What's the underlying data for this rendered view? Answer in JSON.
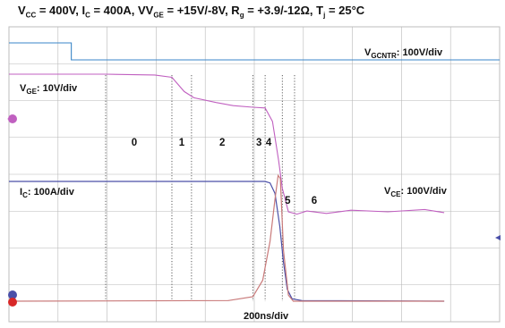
{
  "title": {
    "vcc": "CC",
    "vcc_val": " = 400V,  I",
    "ic": "C",
    "ic_val": " = 400A,  V",
    "vge": "GE",
    "vge_val": " = ",
    "vge_range": "+15V/-8V",
    "rg": "g",
    "rg_val": " = ",
    "rg_range": "+3.9/-12Ω",
    "tj": "j",
    "tj_val": " = 25°C",
    "prefix_v": "V",
    "prefix_r": ",  R",
    "prefix_t": ",  T"
  },
  "labels": {
    "vgcntr_main": "V",
    "vgcntr_sub": "GCNTR",
    "vgcntr_scale": ": 100V/div",
    "vge_main": "V",
    "vge_sub": "GE",
    "vge_scale": ": 10V/div",
    "ic_main": "I",
    "ic_sub": "C",
    "ic_scale": ": 100A/div",
    "vce_main": "V",
    "vce_sub": "CE",
    "vce_scale": ": 100V/div",
    "timebase": "200ns/div"
  },
  "colors": {
    "vgcntr": "#3a86c8",
    "vge": "#c060c0",
    "ic": "#4a4fa8",
    "vce": "#c97a7a",
    "grid": "#b8b8b8",
    "frame": "#bdbdbd"
  },
  "chart_data": {
    "type": "line",
    "time_unit": "ns",
    "time_per_div": 200,
    "phases": [
      {
        "label": "0",
        "t_start": 0,
        "t_end": 270
      },
      {
        "label": "1",
        "t_start": 270,
        "t_end": 350
      },
      {
        "label": "2",
        "t_start": 350,
        "t_end": 600
      },
      {
        "label": "3",
        "t_start": 600,
        "t_end": 650
      },
      {
        "label": "4",
        "t_start": 650,
        "t_end": 720
      },
      {
        "label": "5",
        "t_start": 720,
        "t_end": 770
      },
      {
        "label": "6",
        "t_start": 770,
        "t_end": 1000
      }
    ],
    "series": [
      {
        "name": "V_GCNTR",
        "scale": "100V/div",
        "points": [
          [
            -460,
            0
          ],
          [
            -140,
            0
          ],
          [
            -135,
            -1
          ],
          [
            1380,
            -1
          ]
        ]
      },
      {
        "name": "V_GE",
        "scale": "10V/div",
        "points": [
          [
            -460,
            15.0
          ],
          [
            -150,
            15.0
          ],
          [
            0,
            15.0
          ],
          [
            200,
            14.9
          ],
          [
            270,
            14.6
          ],
          [
            320,
            12.8
          ],
          [
            360,
            12.0
          ],
          [
            450,
            11.4
          ],
          [
            520,
            11.0
          ],
          [
            600,
            10.8
          ],
          [
            650,
            10.7
          ],
          [
            680,
            9.0
          ],
          [
            705,
            4.0
          ],
          [
            720,
            0.5
          ],
          [
            745,
            -2.5
          ],
          [
            780,
            -2.8
          ],
          [
            820,
            -2.4
          ],
          [
            900,
            -2.7
          ],
          [
            1000,
            -2.3
          ],
          [
            1150,
            -2.5
          ],
          [
            1300,
            -2.2
          ],
          [
            1380,
            -2.6
          ]
        ]
      },
      {
        "name": "I_C",
        "scale": "100A/div",
        "points": [
          [
            -460,
            400
          ],
          [
            650,
            400
          ],
          [
            670,
            395
          ],
          [
            690,
            360
          ],
          [
            710,
            250
          ],
          [
            725,
            130
          ],
          [
            740,
            40
          ],
          [
            760,
            8
          ],
          [
            800,
            2
          ],
          [
            1380,
            0
          ]
        ]
      },
      {
        "name": "V_CE",
        "scale": "100V/div",
        "points": [
          [
            -460,
            0
          ],
          [
            500,
            2
          ],
          [
            600,
            15
          ],
          [
            640,
            70
          ],
          [
            670,
            200
          ],
          [
            690,
            340
          ],
          [
            703,
            420
          ],
          [
            712,
            410
          ],
          [
            725,
            170
          ],
          [
            745,
            20
          ],
          [
            765,
            0
          ],
          [
            1380,
            0
          ]
        ]
      }
    ]
  }
}
